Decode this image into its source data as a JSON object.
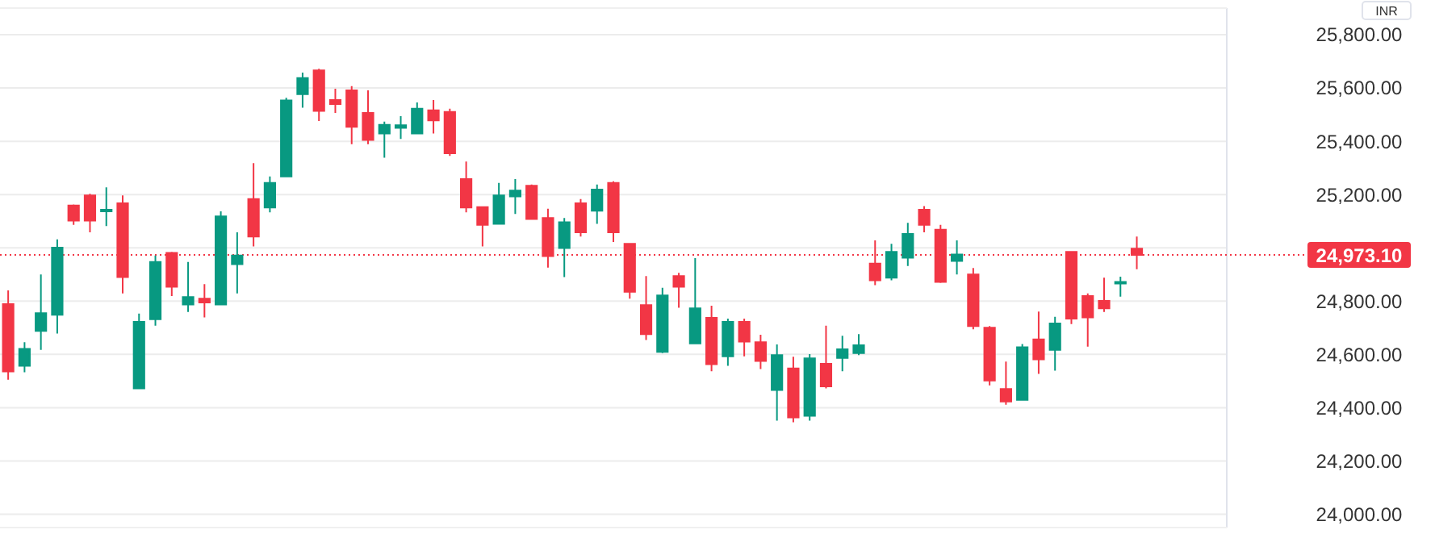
{
  "chart_data": {
    "type": "candlestick",
    "categories": [
      null,
      null,
      null,
      null,
      null,
      null,
      null,
      null,
      null,
      null,
      null,
      null,
      null,
      null,
      null,
      null,
      null,
      null,
      null,
      null,
      null,
      null,
      null,
      null,
      null,
      null,
      null,
      null,
      null,
      null,
      null,
      null,
      null,
      null,
      null,
      null,
      null,
      null,
      null,
      null,
      null,
      null,
      null,
      null,
      null,
      null,
      null,
      null,
      null,
      null,
      null,
      null,
      null,
      null,
      null,
      null,
      null,
      null,
      null,
      null,
      null,
      null,
      null,
      null,
      null,
      null,
      null,
      null,
      null,
      null,
      null,
      null,
      null,
      null,
      null
    ],
    "ohlc": [
      [
        24789,
        24840,
        24505,
        24536
      ],
      [
        24557,
        24646,
        24533,
        24621
      ],
      [
        24688,
        24900,
        24617,
        24755
      ],
      [
        24749,
        25032,
        24678,
        25001
      ],
      [
        25159,
        25163,
        25086,
        25102
      ],
      [
        25197,
        25203,
        25058,
        25102
      ],
      [
        25137,
        25227,
        25082,
        25143
      ],
      [
        25167,
        25197,
        24829,
        24890
      ],
      [
        24472,
        24753,
        24472,
        24722
      ],
      [
        24732,
        24971,
        24708,
        24947
      ],
      [
        24981,
        24985,
        24819,
        24854
      ],
      [
        24787,
        24947,
        24759,
        24815
      ],
      [
        24809,
        24864,
        24739,
        24795
      ],
      [
        24787,
        25137,
        24787,
        25118
      ],
      [
        24939,
        25058,
        24829,
        24971
      ],
      [
        25183,
        25318,
        25005,
        25042
      ],
      [
        25151,
        25268,
        25133,
        25244
      ],
      [
        25268,
        25563,
        25268,
        25553
      ],
      [
        25577,
        25658,
        25526,
        25637
      ],
      [
        25666,
        25672,
        25476,
        25514
      ],
      [
        25555,
        25597,
        25506,
        25540
      ],
      [
        25591,
        25607,
        25389,
        25454
      ],
      [
        25506,
        25591,
        25389,
        25405
      ],
      [
        25429,
        25474,
        25338,
        25462
      ],
      [
        25450,
        25494,
        25409,
        25460
      ],
      [
        25429,
        25546,
        25429,
        25522
      ],
      [
        25516,
        25555,
        25429,
        25478
      ],
      [
        25510,
        25522,
        25345,
        25355
      ],
      [
        25258,
        25324,
        25133,
        25151
      ],
      [
        25153,
        25153,
        25005,
        25086
      ],
      [
        25090,
        25244,
        25090,
        25197
      ],
      [
        25193,
        25258,
        25127,
        25215
      ],
      [
        25233,
        25238,
        25108,
        25108
      ],
      [
        25112,
        25147,
        24926,
        24969
      ],
      [
        24999,
        25112,
        24890,
        25096
      ],
      [
        25167,
        25183,
        25042,
        25058
      ],
      [
        25139,
        25238,
        25090,
        25219
      ],
      [
        25244,
        25250,
        25022,
        25058
      ],
      [
        25015,
        25015,
        24809,
        24835
      ],
      [
        24785,
        24894,
        24654,
        24676
      ],
      [
        24609,
        24850,
        24605,
        24821
      ],
      [
        24894,
        24906,
        24775,
        24854
      ],
      [
        24641,
        24961,
        24641,
        24773
      ],
      [
        24737,
        24783,
        24537,
        24563
      ],
      [
        24593,
        24734,
        24557,
        24722
      ],
      [
        24722,
        24734,
        24593,
        24648
      ],
      [
        24646,
        24674,
        24545,
        24575
      ],
      [
        24466,
        24637,
        24351,
        24597
      ],
      [
        24547,
        24591,
        24345,
        24363
      ],
      [
        24369,
        24601,
        24351,
        24585
      ],
      [
        24565,
        24708,
        24472,
        24480
      ],
      [
        24587,
        24670,
        24537,
        24619
      ],
      [
        24605,
        24676,
        24597,
        24634
      ],
      [
        24941,
        25028,
        24860,
        24878
      ],
      [
        24888,
        25015,
        24878,
        24985
      ],
      [
        24963,
        25094,
        24932,
        25052
      ],
      [
        25143,
        25157,
        25058,
        25086
      ],
      [
        25068,
        25086,
        24868,
        24872
      ],
      [
        24951,
        25028,
        24900,
        24975
      ],
      [
        24900,
        24924,
        24694,
        24706
      ],
      [
        24700,
        24706,
        24484,
        24502
      ],
      [
        24470,
        24573,
        24411,
        24423
      ],
      [
        24429,
        24639,
        24429,
        24627
      ],
      [
        24656,
        24761,
        24527,
        24581
      ],
      [
        24617,
        24741,
        24539,
        24716
      ],
      [
        24985,
        24985,
        24714,
        24734
      ],
      [
        24819,
        24829,
        24629,
        24739
      ],
      [
        24801,
        24888,
        24759,
        24773
      ],
      [
        24868,
        24892,
        24817,
        24872
      ],
      [
        24997,
        25042,
        24920,
        24973.1
      ],
      null,
      null,
      null,
      null,
      null
    ],
    "colors": [
      "#f23645",
      "#089981",
      "#089981",
      "#089981",
      "#f23645",
      "#f23645",
      "#089981",
      "#f23645",
      "#089981",
      "#089981",
      "#f23645",
      "#089981",
      "#f23645",
      "#089981",
      "#089981",
      "#f23645",
      "#089981",
      "#089981",
      "#089981",
      "#f23645",
      "#f23645",
      "#f23645",
      "#f23645",
      "#089981",
      "#089981",
      "#089981",
      "#f23645",
      "#f23645",
      "#f23645",
      "#f23645",
      "#089981",
      "#089981",
      "#f23645",
      "#f23645",
      "#089981",
      "#f23645",
      "#089981",
      "#f23645",
      "#f23645",
      "#f23645",
      "#089981",
      "#f23645",
      "#089981",
      "#f23645",
      "#089981",
      "#f23645",
      "#f23645",
      "#089981",
      "#f23645",
      "#089981",
      "#f23645",
      "#089981",
      "#089981",
      "#f23645",
      "#089981",
      "#089981",
      "#f23645",
      "#f23645",
      "#089981",
      "#f23645",
      "#f23645",
      "#f23645",
      "#089981",
      "#f23645",
      "#089981",
      "#f23645",
      "#f23645",
      "#f23645",
      "#089981",
      "#f23645",
      null,
      null,
      null,
      null,
      null
    ],
    "ylim": [
      23950,
      25900
    ],
    "yticks": [
      {
        "value": 24000,
        "label": "24,000.00"
      },
      {
        "value": 24200,
        "label": "24,200.00"
      },
      {
        "value": 24400,
        "label": "24,400.00"
      },
      {
        "value": 24600,
        "label": "24,600.00"
      },
      {
        "value": 24800,
        "label": "24,800.00"
      },
      {
        "value": 25000,
        "label": null
      },
      {
        "value": 25200,
        "label": "25,200.00"
      },
      {
        "value": 25400,
        "label": "25,400.00"
      },
      {
        "value": 25600,
        "label": "25,600.00"
      },
      {
        "value": 25800,
        "label": "25,800.00"
      }
    ],
    "grid": "y",
    "tick_labels": "y",
    "ref_lines": [
      {
        "axis": "y",
        "value": 24973.1,
        "label": "24,973.10",
        "color": "#f23645",
        "line_style": "dotted"
      }
    ],
    "annotations": [
      "INR"
    ]
  }
}
